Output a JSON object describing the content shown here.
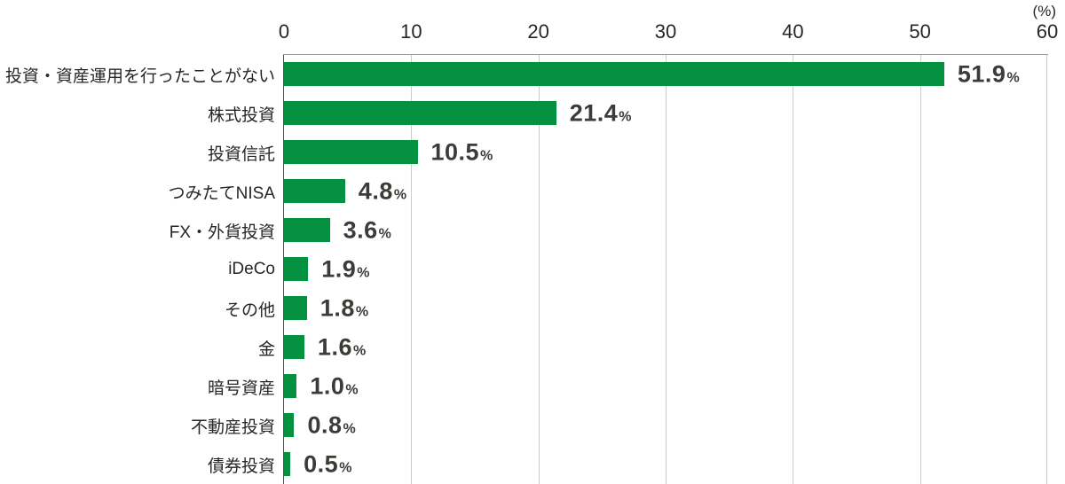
{
  "chart_data": {
    "type": "bar",
    "orientation": "horizontal",
    "unit_label": "(%)",
    "categories": [
      "投資・資産運用を行ったことがない",
      "株式投資",
      "投資信託",
      "つみたてNISA",
      "FX・外貨投資",
      "iDeCo",
      "その他",
      "金",
      "暗号資産",
      "不動産投資",
      "債券投資"
    ],
    "values": [
      51.9,
      21.4,
      10.5,
      4.8,
      3.6,
      1.9,
      1.8,
      1.6,
      1.0,
      0.8,
      0.5
    ],
    "value_labels": [
      "51.9",
      "21.4",
      "10.5",
      "4.8",
      "3.6",
      "1.9",
      "1.8",
      "1.6",
      "1.0",
      "0.8",
      "0.5"
    ],
    "value_suffix": "%",
    "x_ticks": [
      0,
      10,
      20,
      30,
      40,
      50,
      60
    ],
    "xlim": [
      0,
      60
    ],
    "grid": true,
    "legend": null,
    "title": "",
    "colors": {
      "bar": "#049140",
      "gridline": "#cccccc",
      "top_border": "#9b9b9b",
      "y_axis": "#52504c",
      "text": "#262626",
      "value_text": "#3b3b38"
    }
  }
}
